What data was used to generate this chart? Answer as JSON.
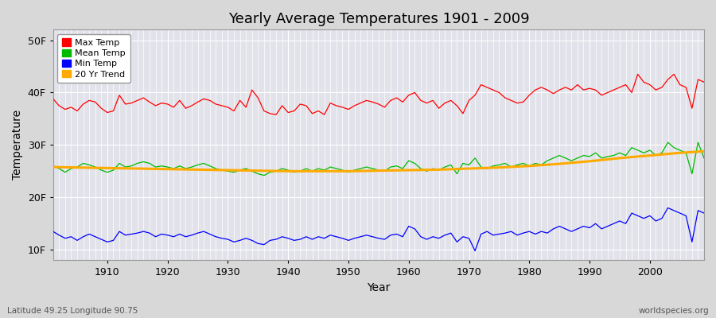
{
  "title": "Yearly Average Temperatures 1901 - 2009",
  "xlabel": "Year",
  "ylabel": "Temperature",
  "years_start": 1901,
  "years_end": 2009,
  "yticks": [
    10,
    20,
    30,
    40,
    50
  ],
  "ytick_labels": [
    "10F",
    "20F",
    "30F",
    "40F",
    "50F"
  ],
  "ylim": [
    8,
    52
  ],
  "xlim": [
    1901,
    2009
  ],
  "bg_color": "#d8d8d8",
  "plot_bg_color": "#e2e2ea",
  "grid_color": "#ffffff",
  "max_temp_color": "#ff0000",
  "mean_temp_color": "#00bb00",
  "min_temp_color": "#0000ff",
  "trend_color": "#ffaa00",
  "footer_left": "Latitude 49.25 Longitude 90.75",
  "footer_right": "worldspecies.org",
  "legend_labels": [
    "Max Temp",
    "Mean Temp",
    "Min Temp",
    "20 Yr Trend"
  ],
  "max_temps": [
    38.8,
    37.5,
    36.8,
    37.2,
    36.5,
    37.8,
    38.5,
    38.2,
    37.0,
    36.2,
    36.5,
    39.5,
    37.8,
    38.0,
    38.5,
    39.0,
    38.2,
    37.5,
    38.0,
    37.8,
    37.2,
    38.5,
    37.0,
    37.5,
    38.2,
    38.8,
    38.5,
    37.8,
    37.5,
    37.2,
    36.5,
    38.5,
    37.2,
    40.5,
    39.0,
    36.5,
    36.0,
    35.8,
    37.5,
    36.2,
    36.5,
    37.8,
    37.5,
    36.0,
    36.5,
    35.8,
    38.0,
    37.5,
    37.2,
    36.8,
    37.5,
    38.0,
    38.5,
    38.2,
    37.8,
    37.2,
    38.5,
    39.0,
    38.2,
    39.5,
    40.0,
    38.5,
    38.0,
    38.5,
    37.0,
    38.0,
    38.5,
    37.5,
    36.0,
    38.5,
    39.5,
    41.5,
    41.0,
    40.5,
    40.0,
    39.0,
    38.5,
    38.0,
    38.2,
    39.5,
    40.5,
    41.0,
    40.5,
    39.8,
    40.5,
    41.0,
    40.5,
    41.5,
    40.5,
    40.8,
    40.5,
    39.5,
    40.0,
    40.5,
    41.0,
    41.5,
    40.0,
    43.5,
    42.0,
    41.5,
    40.5,
    41.0,
    42.5,
    43.5,
    41.5,
    41.0,
    37.0,
    42.5,
    42.0
  ],
  "mean_temps": [
    26.0,
    25.5,
    24.8,
    25.5,
    25.8,
    26.5,
    26.2,
    25.8,
    25.2,
    24.8,
    25.2,
    26.5,
    25.8,
    26.0,
    26.5,
    26.8,
    26.5,
    25.8,
    26.0,
    25.8,
    25.5,
    26.0,
    25.5,
    25.8,
    26.2,
    26.5,
    26.0,
    25.5,
    25.2,
    25.0,
    24.8,
    25.2,
    25.5,
    25.0,
    24.5,
    24.2,
    24.8,
    25.0,
    25.5,
    25.2,
    24.8,
    25.0,
    25.5,
    25.0,
    25.5,
    25.2,
    25.8,
    25.5,
    25.2,
    24.8,
    25.2,
    25.5,
    25.8,
    25.5,
    25.2,
    25.0,
    25.8,
    26.0,
    25.5,
    27.0,
    26.5,
    25.5,
    25.0,
    25.5,
    25.2,
    25.8,
    26.2,
    24.5,
    26.5,
    26.2,
    27.5,
    25.8,
    25.5,
    26.0,
    26.2,
    26.5,
    25.8,
    26.2,
    26.5,
    26.0,
    26.5,
    26.2,
    27.0,
    27.5,
    28.0,
    27.5,
    27.0,
    27.5,
    28.0,
    27.8,
    28.5,
    27.5,
    27.8,
    28.0,
    28.5,
    28.0,
    29.5,
    29.0,
    28.5,
    29.0,
    28.0,
    28.5,
    30.5,
    29.5,
    29.0,
    28.5,
    24.5,
    30.5,
    27.5
  ],
  "min_temps": [
    13.5,
    12.8,
    12.2,
    12.5,
    11.8,
    12.5,
    13.0,
    12.5,
    12.0,
    11.5,
    11.8,
    13.5,
    12.8,
    13.0,
    13.2,
    13.5,
    13.2,
    12.5,
    13.0,
    12.8,
    12.5,
    13.0,
    12.5,
    12.8,
    13.2,
    13.5,
    13.0,
    12.5,
    12.2,
    12.0,
    11.5,
    11.8,
    12.2,
    11.8,
    11.2,
    11.0,
    11.8,
    12.0,
    12.5,
    12.2,
    11.8,
    12.0,
    12.5,
    12.0,
    12.5,
    12.2,
    12.8,
    12.5,
    12.2,
    11.8,
    12.2,
    12.5,
    12.8,
    12.5,
    12.2,
    12.0,
    12.8,
    13.0,
    12.5,
    14.5,
    14.0,
    12.5,
    12.0,
    12.5,
    12.2,
    12.8,
    13.2,
    11.5,
    12.5,
    12.2,
    9.8,
    13.0,
    13.5,
    12.8,
    13.0,
    13.2,
    13.5,
    12.8,
    13.2,
    13.5,
    13.0,
    13.5,
    13.2,
    14.0,
    14.5,
    14.0,
    13.5,
    14.0,
    14.5,
    14.2,
    15.0,
    14.0,
    14.5,
    15.0,
    15.5,
    15.0,
    17.0,
    16.5,
    16.0,
    16.5,
    15.5,
    16.0,
    18.0,
    17.5,
    17.0,
    16.5,
    11.5,
    17.5,
    17.0
  ],
  "trend_x": [
    1901,
    1905,
    1910,
    1915,
    1920,
    1925,
    1930,
    1935,
    1940,
    1945,
    1950,
    1955,
    1960,
    1965,
    1970,
    1975,
    1980,
    1985,
    1990,
    1995,
    2000,
    2005,
    2009
  ],
  "trend_y": [
    25.8,
    25.7,
    25.6,
    25.5,
    25.4,
    25.3,
    25.2,
    25.1,
    25.0,
    25.0,
    25.0,
    25.1,
    25.2,
    25.3,
    25.5,
    25.7,
    26.0,
    26.4,
    26.9,
    27.5,
    28.0,
    28.5,
    28.8
  ]
}
